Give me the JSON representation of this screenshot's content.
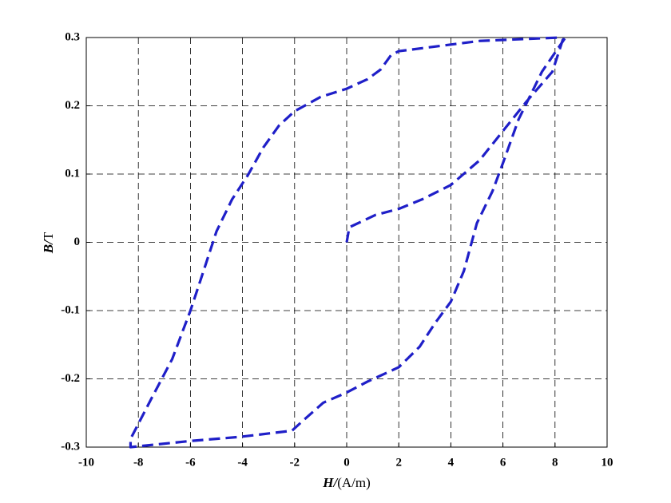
{
  "chart_data": {
    "type": "line",
    "x": [
      0,
      0.1,
      1.1,
      2.0,
      2.9,
      4.0,
      5.1,
      6.0,
      6.9,
      7.9,
      8.3,
      8.2,
      5.1,
      2.0,
      1.7,
      1.3,
      0.8,
      0,
      -1.0,
      -2.0,
      -2.6,
      -3.2,
      -3.8,
      -4.4,
      -5.0,
      -5.6,
      -6.0,
      -6.7,
      -7.5,
      -8.3,
      -8.3,
      -6.0,
      -4.1,
      -2.1,
      -1.7,
      -0.9,
      0,
      0.8,
      2.0,
      2.8,
      3.4,
      4.0,
      4.5,
      5.0,
      5.6,
      6.0,
      6.6,
      7.5,
      8.4
    ],
    "values": [
      0,
      0.022,
      0.04,
      0.049,
      0.063,
      0.084,
      0.12,
      0.163,
      0.206,
      0.25,
      0.297,
      0.3,
      0.295,
      0.28,
      0.274,
      0.253,
      0.239,
      0.225,
      0.213,
      0.192,
      0.171,
      0.139,
      0.098,
      0.063,
      0.016,
      -0.054,
      -0.1,
      -0.171,
      -0.229,
      -0.288,
      -0.3,
      -0.291,
      -0.285,
      -0.276,
      -0.262,
      -0.235,
      -0.22,
      -0.204,
      -0.183,
      -0.153,
      -0.118,
      -0.087,
      -0.042,
      0.028,
      0.075,
      0.116,
      0.18,
      0.25,
      0.3
    ],
    "color": "#1f1fc8",
    "xlim": [
      -10,
      10
    ],
    "xticks": [
      -10,
      -8,
      -6,
      -4,
      -2,
      0,
      2,
      4,
      6,
      8,
      10
    ],
    "ylim": [
      -0.3,
      0.3
    ],
    "yticks": [
      -0.3,
      -0.2,
      -0.1,
      0,
      0.1,
      0.2,
      0.3
    ],
    "grid": true,
    "xlabel": [
      "H/",
      "(A/m)"
    ],
    "ylabel": [
      "B/",
      "T"
    ]
  }
}
